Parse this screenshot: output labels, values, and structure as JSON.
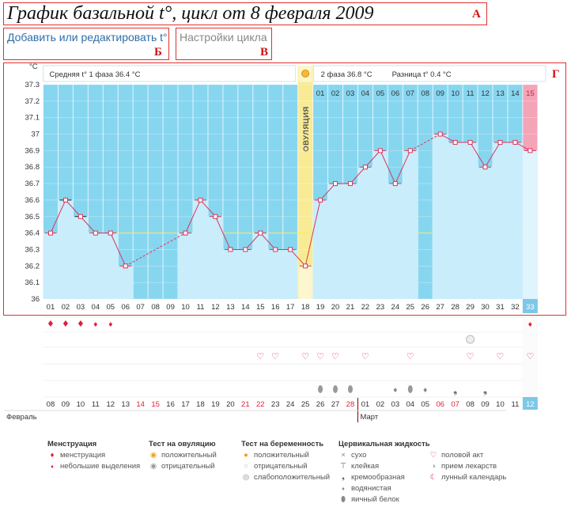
{
  "header": {
    "title": "График базальной t°, цикл от 8 февраля 2009",
    "add_link": "Добавить или редактировать t°",
    "settings_link": "Настройки цикла",
    "letter_a": "А",
    "letter_b": "Б",
    "letter_v": "В",
    "letter_g": "Г"
  },
  "chart_data": {
    "type": "line",
    "title": "График базальной t°",
    "ylabel": "°C",
    "ylim": [
      36.0,
      37.3
    ],
    "yticks": [
      "37.3",
      "37.2",
      "37.1",
      "37",
      "36.9",
      "36.8",
      "36.7",
      "36.6",
      "36.5",
      "36.4",
      "36.3",
      "36.2",
      "36.1",
      "36"
    ],
    "cycle_days": [
      "01",
      "02",
      "03",
      "04",
      "05",
      "06",
      "07",
      "08",
      "09",
      "10",
      "11",
      "12",
      "13",
      "14",
      "15",
      "16",
      "17",
      "18",
      "19",
      "20",
      "21",
      "22",
      "23",
      "24",
      "25",
      "26",
      "27",
      "28",
      "29",
      "30",
      "31",
      "32",
      "33"
    ],
    "temperatures": [
      36.4,
      36.6,
      36.5,
      36.4,
      36.4,
      36.2,
      null,
      null,
      null,
      36.4,
      36.6,
      36.5,
      36.3,
      36.3,
      36.4,
      36.3,
      36.3,
      36.2,
      36.6,
      36.7,
      36.7,
      36.8,
      36.9,
      36.7,
      36.9,
      null,
      37.0,
      36.95,
      36.95,
      36.8,
      36.95,
      36.95,
      36.9
    ],
    "coverline": 36.4,
    "ovulation_day": 18,
    "ovulation_label": "ОВУЛЯЦИЯ",
    "phase1_label": "Средняя t° 1 фаза 36.4 °C",
    "phase2_label": "2 фаза 36.8 °C",
    "diff_label": "Разница t° 0.4 °C",
    "luteal_days": [
      "01",
      "02",
      "03",
      "04",
      "05",
      "06",
      "07",
      "08",
      "09",
      "10",
      "11",
      "12",
      "13",
      "14",
      "15"
    ],
    "current_day": "33",
    "dates": [
      "08",
      "09",
      "10",
      "11",
      "12",
      "13",
      "14",
      "15",
      "16",
      "17",
      "18",
      "19",
      "20",
      "21",
      "22",
      "23",
      "24",
      "25",
      "26",
      "27",
      "28",
      "01",
      "02",
      "03",
      "04",
      "05",
      "06",
      "07",
      "08",
      "09",
      "10",
      "11",
      "12"
    ],
    "weekend_indices": [
      6,
      7,
      13,
      14,
      20,
      26,
      27
    ],
    "months": [
      "Февраль",
      "Март"
    ],
    "menstruation": [
      "heavy",
      "heavy",
      "heavy",
      "light",
      "light"
    ],
    "intercourse_days": [
      15,
      16,
      18,
      19,
      20,
      22,
      25,
      29,
      31,
      33
    ],
    "medication_day": 29,
    "fluid": {
      "19": "egg-white",
      "20": "egg-white",
      "21": "egg-white",
      "24": "watery",
      "25": "egg-white",
      "26": "watery",
      "28": "creamy",
      "30": "creamy"
    },
    "moon_day": 31
  },
  "legend": {
    "menstruation": {
      "title": "Менструация",
      "items": [
        "менструация",
        "небольшие выделения"
      ]
    },
    "ovulation_test": {
      "title": "Тест на овуляцию",
      "items": [
        "положительный",
        "отрицательный"
      ]
    },
    "pregnancy_test": {
      "title": "Тест на беременность",
      "items": [
        "положительный",
        "отрицательный",
        "слабоположительный"
      ]
    },
    "cervical_fluid": {
      "title": "Цервикальная жидкость",
      "items": [
        "сухо",
        "клейкая",
        "кремообразная",
        "водянистая",
        "яичный белок"
      ]
    },
    "other": {
      "items": [
        "половой акт",
        "прием лекарств",
        "лунный календарь"
      ]
    }
  },
  "colors": {
    "blue": "#87d6f0",
    "light_blue": "#c9edfb",
    "ovulation": "#f8eb94",
    "pink": "#f5a3b7",
    "line": "#d8375d",
    "accent_red": "#e0203a",
    "link_blue": "#2e6ea7"
  }
}
